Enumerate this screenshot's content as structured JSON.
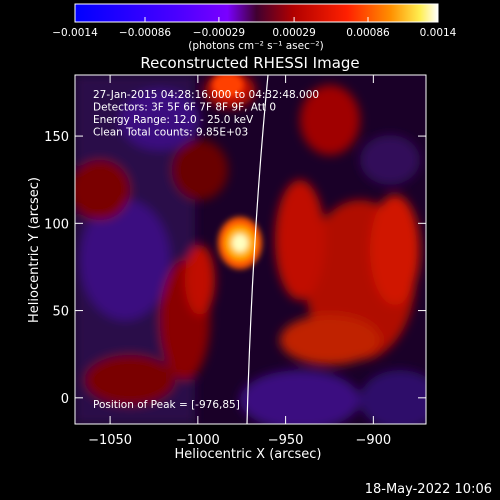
{
  "chart_data": {
    "type": "heatmap",
    "title": "Reconstructed RHESSI Image",
    "xlabel": "Heliocentric X (arcsec)",
    "ylabel": "Heliocentric Y (arcsec)",
    "xlim": [
      -1070,
      -870
    ],
    "ylim": [
      -15,
      185
    ],
    "xticks": [
      -1050,
      -1000,
      -950,
      -900
    ],
    "yticks": [
      0,
      50,
      100,
      150
    ],
    "xtick_labels": [
      "−1050",
      "−1000",
      "−950",
      "−900"
    ],
    "ytick_labels": [
      "0",
      "50",
      "100",
      "150"
    ],
    "colorbar": {
      "range": [
        -0.0014,
        0.0014
      ],
      "ticks": [
        -0.0014,
        -0.00086,
        -0.00029,
        0.00029,
        0.00086,
        0.0014
      ],
      "tick_labels": [
        "−0.0014",
        "−0.00086",
        "−0.00029",
        "0.00029",
        "0.00086",
        "0.0014"
      ],
      "units": "(photons cm⁻² s⁻¹ asec⁻²)"
    },
    "annotations": [
      "27-Jan-2015 04:28:16.000 to 04:32:48.000",
      "Detectors: 3F 5F 6F 7F 8F 9F, Att 0",
      "Energy Range: 12.0 - 25.0 keV",
      "Clean     Total counts: 9.85E+03"
    ],
    "peak_label": "Position of Peak = [-976,85]",
    "peak": {
      "x": -976,
      "y": 85
    },
    "limb_line": true
  },
  "timestamp": "18-May-2022 10:06"
}
